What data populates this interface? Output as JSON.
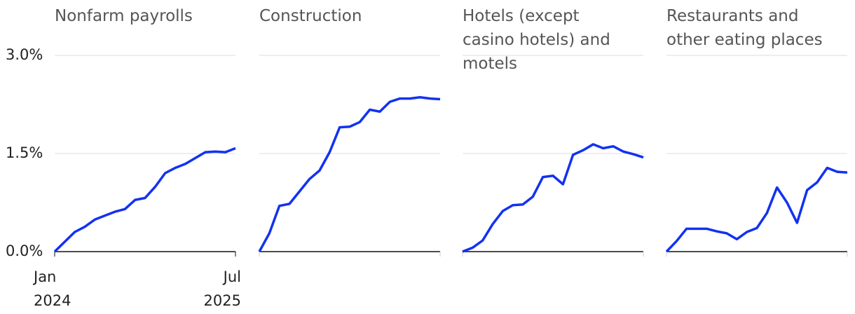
{
  "chart_data": [
    {
      "type": "line",
      "title": "Nonfarm payrolls",
      "categories": [
        "Jan 2024",
        null,
        null,
        null,
        null,
        null,
        null,
        null,
        null,
        null,
        null,
        null,
        null,
        null,
        null,
        null,
        null,
        null,
        "Jul 2025"
      ],
      "series": [
        {
          "color": "#1232f0",
          "values": [
            0,
            0.15,
            0.3,
            0.38,
            0.49,
            0.55,
            0.61,
            0.65,
            0.79,
            0.82,
            0.99,
            1.2,
            1.28,
            1.34,
            1.43,
            1.52,
            1.53,
            1.52,
            1.58
          ]
        }
      ],
      "ylim": [
        0,
        3
      ],
      "yticks": [
        {
          "value": 0,
          "label": "0.0%"
        },
        {
          "value": 1.5,
          "label": "1.5%"
        },
        {
          "value": 3,
          "label": "3.0%"
        }
      ],
      "grid": true
    },
    {
      "type": "line",
      "title": "Construction",
      "categories": [
        null,
        null,
        null,
        null,
        null,
        null,
        null,
        null,
        null,
        null,
        null,
        null,
        null,
        null,
        null,
        null,
        null,
        null,
        null
      ],
      "series": [
        {
          "color": "#1232f0",
          "values": [
            0,
            0.28,
            0.7,
            0.73,
            0.92,
            1.11,
            1.24,
            1.52,
            1.9,
            1.91,
            1.98,
            2.17,
            2.14,
            2.29,
            2.34,
            2.34,
            2.36,
            2.34,
            2.33
          ]
        }
      ],
      "ylim": [
        0,
        3
      ],
      "yticks": [
        0,
        1.5,
        3
      ],
      "grid": true
    },
    {
      "type": "line",
      "title": "Hotels (except casino hotels) and motels",
      "categories": [
        null,
        null,
        null,
        null,
        null,
        null,
        null,
        null,
        null,
        null,
        null,
        null,
        null,
        null,
        null,
        null,
        null,
        null,
        null
      ],
      "series": [
        {
          "color": "#1232f0",
          "values": [
            0,
            0.06,
            0.17,
            0.42,
            0.62,
            0.71,
            0.72,
            0.84,
            1.14,
            1.16,
            1.03,
            1.48,
            1.55,
            1.64,
            1.58,
            1.61,
            1.53,
            1.49,
            1.44
          ]
        }
      ],
      "ylim": [
        0,
        3
      ],
      "yticks": [
        0,
        1.5,
        3
      ],
      "grid": true
    },
    {
      "type": "line",
      "title": "Restaurants and other eating places",
      "categories": [
        null,
        null,
        null,
        null,
        null,
        null,
        null,
        null,
        null,
        null,
        null,
        null,
        null,
        null,
        null,
        null,
        null,
        null,
        null
      ],
      "series": [
        {
          "color": "#1232f0",
          "values": [
            0,
            0.16,
            0.35,
            0.35,
            0.35,
            0.31,
            0.28,
            0.19,
            0.3,
            0.36,
            0.59,
            0.98,
            0.75,
            0.44,
            0.94,
            1.06,
            1.28,
            1.22,
            1.21
          ]
        }
      ],
      "ylim": [
        0,
        3
      ],
      "yticks": [
        0,
        1.5,
        3
      ],
      "grid": true
    }
  ]
}
